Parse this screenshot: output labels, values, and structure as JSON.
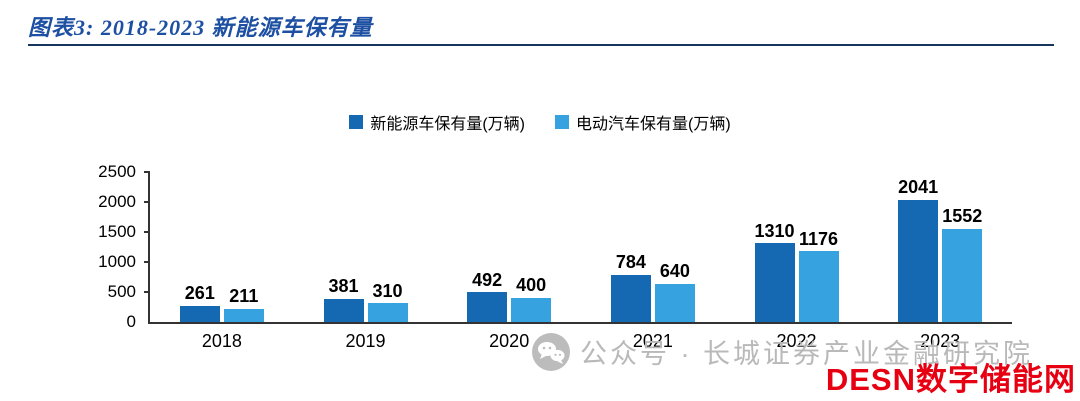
{
  "header": {
    "title": "图表3: 2018-2023 新能源车保有量"
  },
  "chart_data": {
    "type": "bar",
    "title": "2018-2023 新能源车保有量",
    "categories": [
      "2018",
      "2019",
      "2020",
      "2021",
      "2022",
      "2023"
    ],
    "series": [
      {
        "name": "新能源车保有量(万辆)",
        "color": "#1569b3",
        "values": [
          261,
          381,
          492,
          784,
          1310,
          2041
        ]
      },
      {
        "name": "电动汽车保有量(万辆)",
        "color": "#36a2e0",
        "values": [
          211,
          310,
          400,
          640,
          1176,
          1552
        ]
      }
    ],
    "xlabel": "",
    "ylabel": "",
    "ylim": [
      0,
      2500
    ],
    "yticks": [
      0,
      500,
      1000,
      1500,
      2000,
      2500
    ],
    "grid": false,
    "legend_position": "top"
  },
  "watermark": {
    "icon": "wechat-icon",
    "text": "公众号 · 长城证券产业金融研究院"
  },
  "brand": {
    "text": "DESN数字储能网",
    "color": "#e60012"
  }
}
